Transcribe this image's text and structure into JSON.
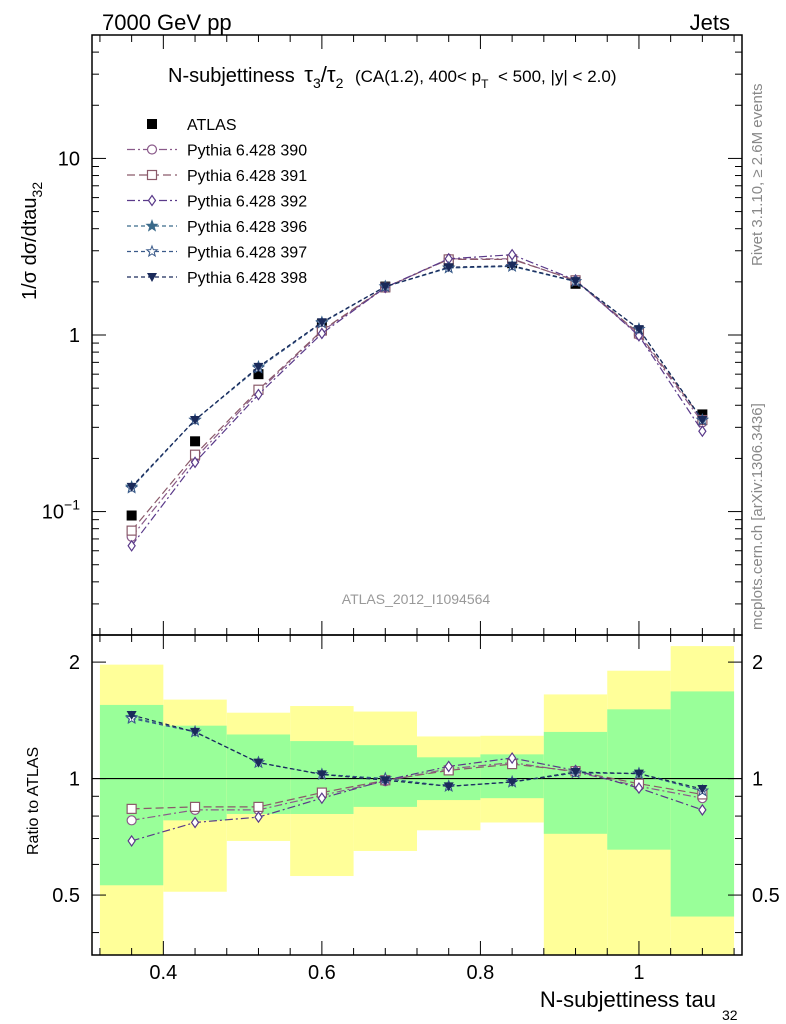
{
  "header": {
    "left": "7000 GeV pp",
    "right": "Jets",
    "side_top": "Rivet 3.1.10, ≥ 2.6M events",
    "side_bottom": "mcplots.cern.ch [arXiv:1306.3436]",
    "watermark": "ATLAS_2012_I1094564"
  },
  "chart_data": [
    {
      "type": "line",
      "panel": "main",
      "title_main": "N-subjettiness",
      "title_tau_a": "τ",
      "title_tau_a_sub": "3",
      "title_slash": "/",
      "title_tau_b": "τ",
      "title_tau_b_sub": "2",
      "title_detail_1": "(CA(1.2), 400< p",
      "title_detail_sub": "T",
      "title_detail_2": "< 500, |y| < 2.0)",
      "ylabel": "1/σ dσ/dtau",
      "ylabel_sub": "32",
      "yscale": "log",
      "ylim": [
        0.02,
        50
      ],
      "xlim": [
        0.31,
        1.13
      ],
      "yticks": [
        {
          "value": 0.1,
          "base": "10",
          "exp": "−1"
        },
        {
          "value": 1,
          "base": "1",
          "exp": ""
        },
        {
          "value": 10,
          "base": "10",
          "exp": ""
        }
      ],
      "x": [
        0.36,
        0.44,
        0.52,
        0.6,
        0.68,
        0.76,
        0.84,
        0.92,
        1.0,
        1.08
      ],
      "series": [
        {
          "name": "ATLAS",
          "marker": "filled-square",
          "color": "#000000",
          "dash": "none",
          "values": [
            0.095,
            0.25,
            0.6,
            1.15,
            1.88,
            2.55,
            2.55,
            1.95,
            1.05,
            0.355
          ]
        },
        {
          "name": "Pythia 6.428 390",
          "marker": "open-circle",
          "color": "#8a5a8a",
          "dash": "8,3,2,3",
          "values": [
            0.072,
            0.2,
            0.48,
            1.05,
            1.85,
            2.7,
            2.7,
            2.03,
            1.0,
            0.32
          ]
        },
        {
          "name": "Pythia 6.428 391",
          "marker": "open-square",
          "color": "#8a5a6a",
          "dash": "8,4",
          "values": [
            0.078,
            0.21,
            0.49,
            1.06,
            1.86,
            2.68,
            2.68,
            2.04,
            1.02,
            0.33
          ]
        },
        {
          "name": "Pythia 6.428 392",
          "marker": "open-diamond",
          "color": "#5a3a8a",
          "dash": "8,3,2,3",
          "values": [
            0.064,
            0.19,
            0.46,
            1.02,
            1.86,
            2.7,
            2.85,
            2.05,
            0.99,
            0.285
          ]
        },
        {
          "name": "Pythia 6.428 396",
          "marker": "filled-star",
          "color": "#3a6a8a",
          "dash": "4,3",
          "values": [
            0.138,
            0.33,
            0.66,
            1.18,
            1.88,
            2.4,
            2.45,
            2.01,
            1.08,
            0.33
          ]
        },
        {
          "name": "Pythia 6.428 397",
          "marker": "open-star",
          "color": "#3a5a8a",
          "dash": "4,3",
          "values": [
            0.136,
            0.33,
            0.65,
            1.17,
            1.88,
            2.4,
            2.45,
            2.01,
            1.08,
            0.33
          ]
        },
        {
          "name": "Pythia 6.428 398",
          "marker": "filled-triangle-down",
          "color": "#1a2a5a",
          "dash": "4,3",
          "values": [
            0.138,
            0.33,
            0.66,
            1.18,
            1.88,
            2.42,
            2.47,
            2.02,
            1.08,
            0.33
          ]
        }
      ]
    },
    {
      "type": "line",
      "panel": "ratio",
      "ylabel": "Ratio to ATLAS",
      "xlabel": "N-subjettiness tau",
      "xlabel_sub": "32",
      "ylim": [
        0.35,
        2.35
      ],
      "yscale": "log",
      "xlim": [
        0.31,
        1.13
      ],
      "yticks": [
        {
          "value": 0.5,
          "label": "0.5"
        },
        {
          "value": 1,
          "label": "1"
        },
        {
          "value": 2,
          "label": "2"
        }
      ],
      "xticks": [
        {
          "value": 0.4,
          "label": "0.4"
        },
        {
          "value": 0.6,
          "label": "0.6"
        },
        {
          "value": 0.8,
          "label": "0.8"
        },
        {
          "value": 1.0,
          "label": "1"
        }
      ],
      "bands": {
        "edges": [
          0.32,
          0.4,
          0.48,
          0.56,
          0.64,
          0.72,
          0.8,
          0.88,
          0.96,
          1.04,
          1.12
        ],
        "yellow_low": [
          0.35,
          0.51,
          0.69,
          0.56,
          0.65,
          0.735,
          0.77,
          0.35,
          0.35,
          0.35
        ],
        "yellow_high": [
          1.97,
          1.6,
          1.48,
          1.54,
          1.49,
          1.285,
          1.29,
          1.65,
          1.9,
          2.2
        ],
        "green_low": [
          0.53,
          0.78,
          0.81,
          0.81,
          0.845,
          0.88,
          0.89,
          0.72,
          0.655,
          0.44
        ],
        "green_high": [
          1.55,
          1.37,
          1.3,
          1.25,
          1.22,
          1.135,
          1.155,
          1.32,
          1.51,
          1.68
        ]
      },
      "x": [
        0.36,
        0.44,
        0.52,
        0.6,
        0.68,
        0.76,
        0.84,
        0.92,
        1.0,
        1.08
      ],
      "series": [
        {
          "name": "Pythia 6.428 390",
          "values": [
            0.78,
            0.83,
            0.83,
            0.905,
            0.985,
            1.06,
            1.1,
            1.04,
            0.955,
            0.89
          ]
        },
        {
          "name": "Pythia 6.428 391",
          "values": [
            0.835,
            0.845,
            0.845,
            0.92,
            0.99,
            1.05,
            1.09,
            1.045,
            0.97,
            0.91
          ]
        },
        {
          "name": "Pythia 6.428 392",
          "values": [
            0.69,
            0.77,
            0.795,
            0.89,
            0.99,
            1.075,
            1.13,
            1.05,
            0.945,
            0.83
          ]
        },
        {
          "name": "Pythia 6.428 396",
          "values": [
            1.44,
            1.32,
            1.1,
            1.025,
            1.0,
            0.955,
            0.98,
            1.035,
            1.03,
            0.93
          ]
        },
        {
          "name": "Pythia 6.428 397",
          "values": [
            1.43,
            1.32,
            1.1,
            1.025,
            1.0,
            0.955,
            0.98,
            1.035,
            1.03,
            0.93
          ]
        },
        {
          "name": "Pythia 6.428 398",
          "values": [
            1.46,
            1.32,
            1.1,
            1.025,
            0.99,
            0.955,
            0.98,
            1.04,
            1.03,
            0.94
          ]
        }
      ]
    }
  ]
}
